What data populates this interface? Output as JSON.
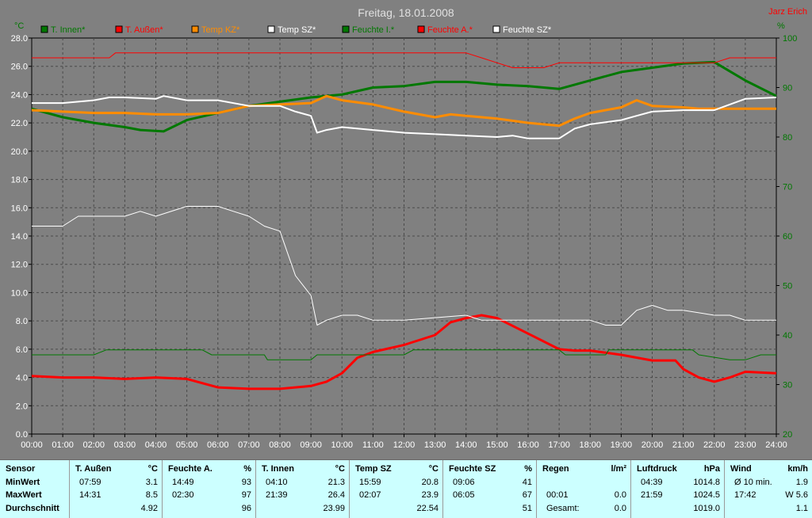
{
  "chart_data": {
    "type": "line",
    "title": "Freitag, 18.01.2008",
    "author": "Jarz Erich",
    "y_left_label": "°C",
    "y_right_label": "%",
    "ylim_left": [
      0,
      28
    ],
    "ylim_right": [
      20,
      100
    ],
    "xlim_hours": [
      0,
      24
    ],
    "grid": true,
    "legend_position": "top",
    "x_ticks": [
      "00:00",
      "01:00",
      "02:00",
      "03:00",
      "04:00",
      "05:00",
      "06:00",
      "07:00",
      "08:00",
      "09:00",
      "10:00",
      "11:00",
      "12:00",
      "13:00",
      "14:00",
      "15:00",
      "16:00",
      "17:00",
      "18:00",
      "19:00",
      "20:00",
      "21:00",
      "22:00",
      "23:00",
      "24:00"
    ],
    "y_left_ticks": [
      "0.0",
      "2.0",
      "4.0",
      "6.0",
      "8.0",
      "10.0",
      "12.0",
      "14.0",
      "16.0",
      "18.0",
      "20.0",
      "22.0",
      "24.0",
      "26.0",
      "28.0"
    ],
    "y_right_ticks": [
      "20",
      "30",
      "40",
      "50",
      "60",
      "70",
      "80",
      "90",
      "100"
    ],
    "series": [
      {
        "name": "T. Innen*",
        "color": "#007800",
        "width": 3,
        "axis": "left",
        "points": [
          [
            0,
            23.0
          ],
          [
            1,
            22.4
          ],
          [
            2,
            22.0
          ],
          [
            3,
            21.7
          ],
          [
            3.5,
            21.5
          ],
          [
            4.25,
            21.4
          ],
          [
            5,
            22.2
          ],
          [
            6,
            22.7
          ],
          [
            7,
            23.2
          ],
          [
            8,
            23.5
          ],
          [
            9,
            23.8
          ],
          [
            10,
            24.0
          ],
          [
            11,
            24.5
          ],
          [
            12,
            24.6
          ],
          [
            13,
            24.9
          ],
          [
            14,
            24.9
          ],
          [
            15,
            24.7
          ],
          [
            16,
            24.6
          ],
          [
            16.5,
            24.5
          ],
          [
            17,
            24.4
          ],
          [
            18,
            25.0
          ],
          [
            19,
            25.6
          ],
          [
            20,
            25.9
          ],
          [
            21,
            26.2
          ],
          [
            22,
            26.3
          ],
          [
            23,
            25.0
          ],
          [
            24,
            23.9
          ]
        ]
      },
      {
        "name": "T. Außen*",
        "color": "#ff0000",
        "width": 3,
        "axis": "left",
        "points": [
          [
            0,
            4.1
          ],
          [
            1,
            4.0
          ],
          [
            2,
            4.0
          ],
          [
            3,
            3.9
          ],
          [
            4,
            4.0
          ],
          [
            5,
            3.9
          ],
          [
            6,
            3.3
          ],
          [
            7,
            3.2
          ],
          [
            8,
            3.2
          ],
          [
            9,
            3.4
          ],
          [
            9.5,
            3.7
          ],
          [
            10,
            4.3
          ],
          [
            10.5,
            5.4
          ],
          [
            11,
            5.8
          ],
          [
            12,
            6.3
          ],
          [
            13,
            7.0
          ],
          [
            13.5,
            7.9
          ],
          [
            14,
            8.2
          ],
          [
            14.5,
            8.4
          ],
          [
            15,
            8.2
          ],
          [
            16,
            7.1
          ],
          [
            17,
            6.0
          ],
          [
            17.5,
            5.9
          ],
          [
            18,
            5.9
          ],
          [
            19,
            5.6
          ],
          [
            20,
            5.2
          ],
          [
            20.75,
            5.2
          ],
          [
            21,
            4.6
          ],
          [
            21.5,
            4.0
          ],
          [
            22,
            3.7
          ],
          [
            22.5,
            4.0
          ],
          [
            23,
            4.4
          ],
          [
            24,
            4.3
          ]
        ]
      },
      {
        "name": "Temp KZ*",
        "color": "#ff8c00",
        "width": 3,
        "axis": "left",
        "points": [
          [
            0,
            22.9
          ],
          [
            1,
            22.8
          ],
          [
            2,
            22.7
          ],
          [
            3,
            22.7
          ],
          [
            4,
            22.6
          ],
          [
            5,
            22.6
          ],
          [
            6,
            22.7
          ],
          [
            7,
            23.2
          ],
          [
            8,
            23.3
          ],
          [
            9,
            23.4
          ],
          [
            9.5,
            23.9
          ],
          [
            10,
            23.6
          ],
          [
            11,
            23.3
          ],
          [
            12,
            22.8
          ],
          [
            13,
            22.4
          ],
          [
            13.5,
            22.6
          ],
          [
            14,
            22.5
          ],
          [
            15,
            22.3
          ],
          [
            16,
            22.0
          ],
          [
            17,
            21.8
          ],
          [
            17.5,
            22.3
          ],
          [
            18,
            22.7
          ],
          [
            19,
            23.1
          ],
          [
            19.5,
            23.6
          ],
          [
            20,
            23.2
          ],
          [
            21,
            23.1
          ],
          [
            21.5,
            23.0
          ],
          [
            22,
            23.0
          ],
          [
            23,
            23.0
          ],
          [
            24,
            23.0
          ]
        ]
      },
      {
        "name": "Temp SZ*",
        "color": "#ffffff",
        "width": 2,
        "axis": "left",
        "points": [
          [
            0,
            23.4
          ],
          [
            1,
            23.4
          ],
          [
            2,
            23.6
          ],
          [
            2.5,
            23.8
          ],
          [
            3,
            23.8
          ],
          [
            4,
            23.7
          ],
          [
            4.25,
            23.9
          ],
          [
            5,
            23.6
          ],
          [
            6,
            23.6
          ],
          [
            7,
            23.2
          ],
          [
            8,
            23.2
          ],
          [
            8.5,
            22.8
          ],
          [
            9,
            22.5
          ],
          [
            9.2,
            21.3
          ],
          [
            9.5,
            21.5
          ],
          [
            10,
            21.7
          ],
          [
            11,
            21.5
          ],
          [
            12,
            21.3
          ],
          [
            13,
            21.2
          ],
          [
            14,
            21.1
          ],
          [
            15,
            21.0
          ],
          [
            15.5,
            21.1
          ],
          [
            16,
            20.9
          ],
          [
            17,
            20.9
          ],
          [
            17.5,
            21.6
          ],
          [
            18,
            21.9
          ],
          [
            19,
            22.2
          ],
          [
            19.5,
            22.5
          ],
          [
            20,
            22.8
          ],
          [
            21,
            22.9
          ],
          [
            22,
            22.9
          ],
          [
            22.5,
            23.3
          ],
          [
            23,
            23.7
          ],
          [
            24,
            23.8
          ]
        ]
      },
      {
        "name": "Feuchte I.*",
        "color": "#007800",
        "width": 1,
        "axis": "right",
        "points": [
          [
            0,
            36
          ],
          [
            2,
            36
          ],
          [
            2.4,
            37
          ],
          [
            5.5,
            37
          ],
          [
            5.8,
            36
          ],
          [
            7.5,
            36
          ],
          [
            7.6,
            35
          ],
          [
            9,
            35
          ],
          [
            9.2,
            36
          ],
          [
            12,
            36
          ],
          [
            12.3,
            37
          ],
          [
            17,
            37
          ],
          [
            17.2,
            36
          ],
          [
            18.5,
            36
          ],
          [
            18.6,
            37
          ],
          [
            21.3,
            37
          ],
          [
            21.5,
            36
          ],
          [
            22.5,
            35
          ],
          [
            23,
            35
          ],
          [
            23.5,
            36
          ],
          [
            24,
            36
          ]
        ]
      },
      {
        "name": "Feuchte A.*",
        "color": "#ff0000",
        "width": 1,
        "axis": "right",
        "points": [
          [
            0,
            96
          ],
          [
            2.5,
            96
          ],
          [
            2.7,
            97
          ],
          [
            14,
            97
          ],
          [
            14.5,
            96
          ],
          [
            15,
            95
          ],
          [
            15.5,
            94
          ],
          [
            16.5,
            94
          ],
          [
            17,
            95
          ],
          [
            20,
            95
          ],
          [
            22,
            95
          ],
          [
            22.5,
            96
          ],
          [
            23,
            96
          ],
          [
            24,
            96
          ]
        ]
      },
      {
        "name": "Feuchte SZ*",
        "color": "#ffffff",
        "width": 1,
        "axis": "right",
        "points": [
          [
            0,
            62
          ],
          [
            1,
            62
          ],
          [
            1.5,
            64
          ],
          [
            2,
            64
          ],
          [
            3,
            64
          ],
          [
            3.5,
            65
          ],
          [
            4,
            64
          ],
          [
            5,
            66
          ],
          [
            6,
            66
          ],
          [
            6.5,
            65
          ],
          [
            7,
            64
          ],
          [
            7.5,
            62
          ],
          [
            8,
            61
          ],
          [
            8.5,
            52
          ],
          [
            9,
            48
          ],
          [
            9.2,
            42
          ],
          [
            9.5,
            43
          ],
          [
            10,
            44
          ],
          [
            10.5,
            44
          ],
          [
            11,
            43
          ],
          [
            12,
            43
          ],
          [
            14,
            44
          ],
          [
            14.5,
            43
          ],
          [
            15,
            43
          ],
          [
            17,
            43
          ],
          [
            18,
            43
          ],
          [
            18.5,
            42
          ],
          [
            19,
            42
          ],
          [
            19.5,
            45
          ],
          [
            20,
            46
          ],
          [
            20.5,
            45
          ],
          [
            21,
            45
          ],
          [
            22,
            44
          ],
          [
            22.5,
            44
          ],
          [
            23,
            43
          ],
          [
            24,
            43
          ]
        ]
      }
    ]
  },
  "stats_table": {
    "columns": [
      {
        "header": "Sensor",
        "unit": "",
        "rows": [
          {
            "time": "MinWert",
            "value": ""
          },
          {
            "time": "MaxWert",
            "value": ""
          },
          {
            "time": "Durchschnitt",
            "value": ""
          }
        ]
      },
      {
        "header": "T. Außen",
        "unit": "°C",
        "rows": [
          {
            "time": "07:59",
            "value": "3.1"
          },
          {
            "time": "14:31",
            "value": "8.5"
          },
          {
            "time": "",
            "value": "4.92"
          }
        ]
      },
      {
        "header": "Feuchte A.",
        "unit": "%",
        "rows": [
          {
            "time": "14:49",
            "value": "93"
          },
          {
            "time": "02:30",
            "value": "97"
          },
          {
            "time": "",
            "value": "96"
          }
        ]
      },
      {
        "header": "T. Innen",
        "unit": "°C",
        "rows": [
          {
            "time": "04:10",
            "value": "21.3"
          },
          {
            "time": "21:39",
            "value": "26.4"
          },
          {
            "time": "",
            "value": "23.99"
          }
        ]
      },
      {
        "header": "Temp SZ",
        "unit": "°C",
        "rows": [
          {
            "time": "15:59",
            "value": "20.8"
          },
          {
            "time": "02:07",
            "value": "23.9"
          },
          {
            "time": "",
            "value": "22.54"
          }
        ]
      },
      {
        "header": "Feuchte SZ",
        "unit": "%",
        "rows": [
          {
            "time": "09:06",
            "value": "41"
          },
          {
            "time": "06:05",
            "value": "67"
          },
          {
            "time": "",
            "value": "51"
          }
        ]
      },
      {
        "header": "Regen",
        "unit": "l/m²",
        "rows": [
          {
            "time": "",
            "value": ""
          },
          {
            "time": "00:01",
            "value": "0.0"
          },
          {
            "time": "Gesamt:",
            "value": "0.0"
          }
        ]
      },
      {
        "header": "Luftdruck",
        "unit": "hPa",
        "rows": [
          {
            "time": "04:39",
            "value": "1014.8"
          },
          {
            "time": "21:59",
            "value": "1024.5"
          },
          {
            "time": "",
            "value": "1019.0"
          }
        ]
      },
      {
        "header": "Wind",
        "unit": "km/h",
        "rows": [
          {
            "time": "Ø 10 min.",
            "value": "1.9"
          },
          {
            "time": "17:42",
            "value": "W 5.6"
          },
          {
            "time": "",
            "value": "1.1"
          }
        ]
      }
    ]
  }
}
